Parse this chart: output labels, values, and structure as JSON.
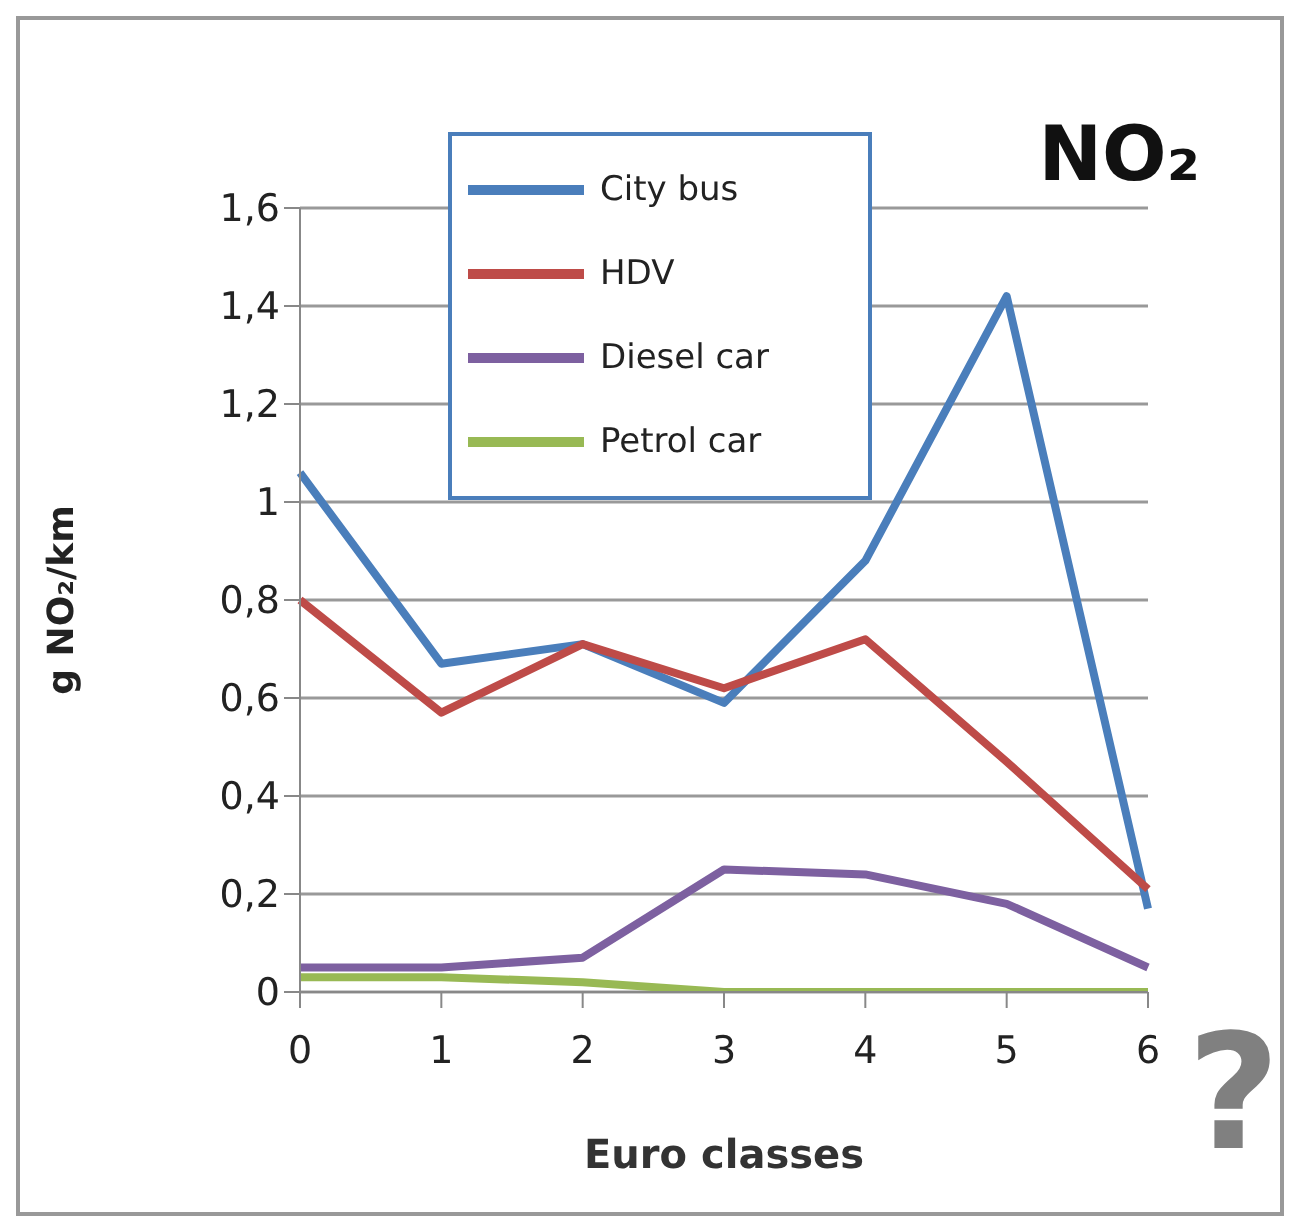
{
  "chart_data": {
    "type": "line",
    "title": "NO₂",
    "xlabel": "Euro classes",
    "ylabel": "g NO₂/km",
    "annotations": [
      "?"
    ],
    "categories": [
      "0",
      "1",
      "2",
      "3",
      "4",
      "5",
      "6"
    ],
    "series": [
      {
        "name": "City bus",
        "color": "#4a7ebb",
        "values": [
          1.06,
          0.67,
          0.71,
          0.59,
          0.88,
          1.42,
          0.17
        ]
      },
      {
        "name": "HDV",
        "color": "#be4b48",
        "values": [
          0.8,
          0.57,
          0.71,
          0.62,
          0.72,
          0.47,
          0.21
        ]
      },
      {
        "name": "Diesel car",
        "color": "#7d60a0",
        "values": [
          0.05,
          0.05,
          0.07,
          0.25,
          0.24,
          0.18,
          0.05
        ]
      },
      {
        "name": "Petrol car",
        "color": "#98b954",
        "values": [
          0.03,
          0.03,
          0.02,
          0.0,
          0.0,
          0.0,
          0.0
        ]
      }
    ],
    "ylim": [
      0,
      1.6
    ],
    "yticks": [
      0,
      {
        "value": 0.2,
        "label": "0,2"
      },
      {
        "value": 0.4,
        "label": "0,4"
      },
      {
        "value": 0.6,
        "label": "0,6"
      },
      {
        "value": 0.8,
        "label": "0,8"
      },
      1,
      {
        "value": 1.2,
        "label": "1,2"
      },
      {
        "value": 1.4,
        "label": "1,4"
      },
      {
        "value": 1.6,
        "label": "1,6"
      }
    ],
    "grid": "y",
    "legend": "top",
    "marker": "none",
    "line_style": "solid"
  }
}
